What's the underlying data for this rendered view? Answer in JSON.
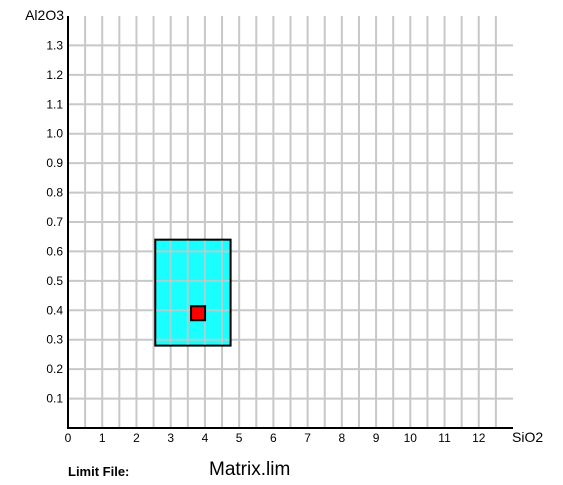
{
  "chart_data": {
    "type": "scatter",
    "xlabel": "SiO2",
    "ylabel": "Al2O3",
    "xlim": [
      0,
      13
    ],
    "ylim": [
      0,
      1.4
    ],
    "x_ticks": [
      0,
      1,
      2,
      3,
      4,
      5,
      6,
      7,
      8,
      9,
      10,
      11,
      12
    ],
    "y_ticks": [
      0.1,
      0.2,
      0.3,
      0.4,
      0.5,
      0.6,
      0.7,
      0.8,
      0.9,
      1.0,
      1.1,
      1.2,
      1.3
    ],
    "y_tick_labels": [
      "0.1",
      "0.2",
      "0.3",
      "0.4",
      "0.5",
      "0.6",
      "0.7",
      "0.8",
      "0.9",
      "1.0",
      "1.1",
      "1.2",
      "1.3"
    ],
    "x_grid_step": 0.5,
    "y_grid_step": 0.1,
    "grid": true,
    "limit_box": {
      "x": [
        2.55,
        4.75
      ],
      "y": [
        0.28,
        0.64
      ],
      "fill": "#00ffff"
    },
    "point": {
      "x": 3.8,
      "y": 0.39,
      "fill": "#ff0000"
    },
    "colors": {
      "grid": "#c8c8c8",
      "axis": "#000000",
      "box_stroke": "#000000",
      "point_stroke": "#000000"
    }
  },
  "footer": {
    "limit_label": "Limit File:",
    "limit_file": "Matrix.lim"
  }
}
